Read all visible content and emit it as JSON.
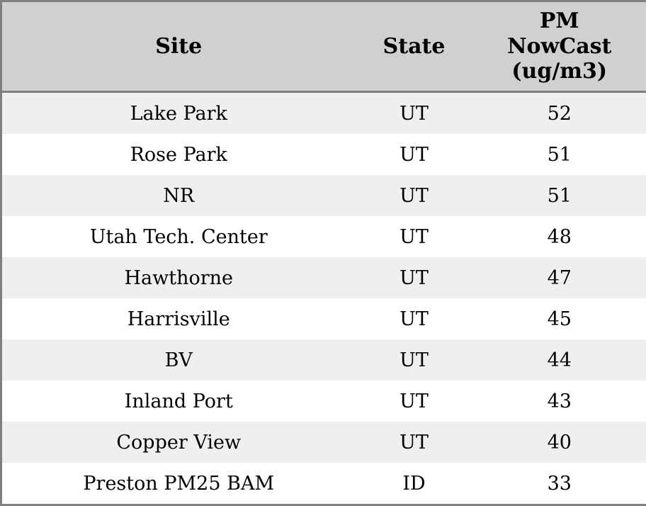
{
  "colors": {
    "border": "#7f7f7f",
    "header_bg": "#d0d0d0",
    "stripe_bg": "#efefef",
    "row_bg": "#ffffff",
    "text": "#000000"
  },
  "chart_data": {
    "type": "table",
    "columns": [
      {
        "label": "Site",
        "lines": [
          "Site"
        ]
      },
      {
        "label": "State",
        "lines": [
          "State"
        ]
      },
      {
        "label": "PM NowCast (ug/m3)",
        "lines": [
          "PM",
          "NowCast",
          "(ug/m3)"
        ]
      }
    ],
    "rows": [
      [
        "Lake Park",
        "UT",
        52
      ],
      [
        "Rose Park",
        "UT",
        51
      ],
      [
        "NR",
        "UT",
        51
      ],
      [
        "Utah Tech. Center",
        "UT",
        48
      ],
      [
        "Hawthorne",
        "UT",
        47
      ],
      [
        "Harrisville",
        "UT",
        45
      ],
      [
        "BV",
        "UT",
        44
      ],
      [
        "Inland Port",
        "UT",
        43
      ],
      [
        "Copper View",
        "UT",
        40
      ],
      [
        "Preston PM25 BAM",
        "ID",
        33
      ]
    ]
  }
}
